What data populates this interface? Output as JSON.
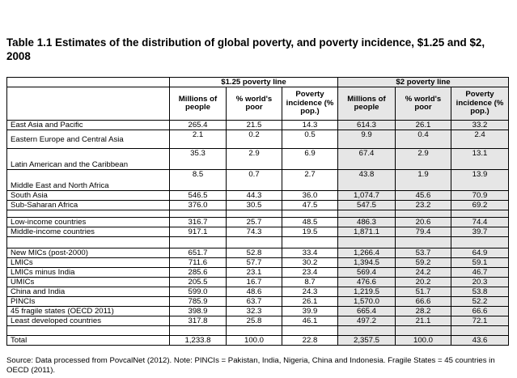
{
  "title": "Table 1.1 Estimates of the distribution of global poverty, and poverty incidence, $1.25 and $2, 2008",
  "groups": {
    "g125": "$1.25 poverty line",
    "g2": "$2 poverty line"
  },
  "col_headers": {
    "c1": "Millions of people",
    "c2": "% world's poor",
    "c3": "Poverty incidence (% pop.)",
    "c4": "Millions of people",
    "c5": "% world's poor",
    "c6": "Poverty incidence (% pop.)"
  },
  "rows": {
    "r1": {
      "label": "East Asia and Pacific",
      "v": [
        "265.4",
        "21.5",
        "14.3",
        "614.3",
        "26.1",
        "33.2"
      ]
    },
    "r2": {
      "label": "Eastern Europe and Central Asia",
      "v": [
        "2.1",
        "0.2",
        "0.5",
        "9.9",
        "0.4",
        "2.4"
      ]
    },
    "r3": {
      "label": "Latin American and the Caribbean",
      "v": [
        "35.3",
        "2.9",
        "6.9",
        "67.4",
        "2.9",
        "13.1"
      ]
    },
    "r4": {
      "label": "Middle East and North Africa",
      "v": [
        "8.5",
        "0.7",
        "2.7",
        "43.8",
        "1.9",
        "13.9"
      ]
    },
    "r5": {
      "label": "South Asia",
      "v": [
        "546.5",
        "44.3",
        "36.0",
        "1,074.7",
        "45.6",
        "70.9"
      ]
    },
    "r6": {
      "label": "Sub-Saharan Africa",
      "v": [
        "376.0",
        "30.5",
        "47.5",
        "547.5",
        "23.2",
        "69.2"
      ]
    },
    "r7": {
      "label": "Low-income countries",
      "v": [
        "316.7",
        "25.7",
        "48.5",
        "486.3",
        "20.6",
        "74.4"
      ]
    },
    "r8": {
      "label": "Middle-income countries",
      "v": [
        "917.1",
        "74.3",
        "19.5",
        "1,871.1",
        "79.4",
        "39.7"
      ]
    },
    "r9": {
      "label": "New MICs (post-2000)",
      "v": [
        "651.7",
        "52.8",
        "33.4",
        "1,266.4",
        "53.7",
        "64.9"
      ]
    },
    "r10": {
      "label": "LMICs",
      "v": [
        "711.6",
        "57.7",
        "30.2",
        "1,394.5",
        "59.2",
        "59.1"
      ]
    },
    "r11": {
      "label": "LMICs minus India",
      "v": [
        "285.6",
        "23.1",
        "23.4",
        "569.4",
        "24.2",
        "46.7"
      ]
    },
    "r12": {
      "label": "UMICs",
      "v": [
        "205.5",
        "16.7",
        "8.7",
        "476.6",
        "20.2",
        "20.3"
      ]
    },
    "r13": {
      "label": "China and India",
      "v": [
        "599.0",
        "48.6",
        "24.3",
        "1,219.5",
        "51.7",
        "53.8"
      ]
    },
    "r14": {
      "label": "PINCIs",
      "v": [
        "785.9",
        "63.7",
        "26.1",
        "1,570.0",
        "66.6",
        "52.2"
      ]
    },
    "r15": {
      "label": "45 fragile states (OECD 2011)",
      "v": [
        "398.9",
        "32.3",
        "39.9",
        "665.4",
        "28.2",
        "66.6"
      ]
    },
    "r16": {
      "label": "Least developed countries",
      "v": [
        "317.8",
        "25.8",
        "46.1",
        "497.2",
        "21.1",
        "72.1"
      ]
    },
    "r17": {
      "label": "Total",
      "v": [
        "1,233.8",
        "100.0",
        "22.8",
        "2,357.5",
        "100.0",
        "43.6"
      ]
    }
  },
  "source": "Source: Data processed from PovcalNet (2012). Note: PINCIs = Pakistan, India, Nigeria, China and Indonesia. Fragile States = 45 countries in OECD (2011)."
}
